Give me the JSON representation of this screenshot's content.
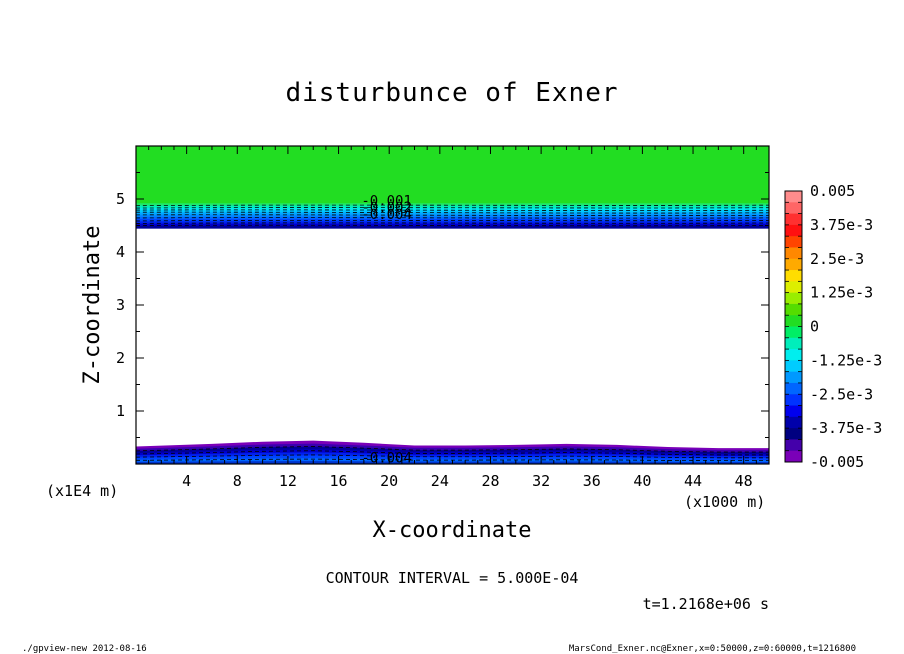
{
  "chart_data": {
    "type": "contour",
    "title": "disturbunce of Exner",
    "xlabel": "X-coordinate",
    "ylabel": "Z-coordinate",
    "x_unit_label": "(x1000 m)",
    "y_unit_label": "(x1E4 m)",
    "xlim": [
      0,
      50
    ],
    "ylim": [
      0,
      6
    ],
    "x_ticks": [
      4,
      8,
      12,
      16,
      20,
      24,
      28,
      32,
      36,
      40,
      44,
      48
    ],
    "y_ticks": [
      1,
      2,
      3,
      4,
      5
    ],
    "contour_interval_text": "CONTOUR INTERVAL = 5.000E-04",
    "time_text": "t=1.2168e+06 s",
    "footer_left": "./gpview-new  2012-08-16",
    "footer_right": "MarsCond_Exner.nc@Exner,x=0:50000,z=0:60000,t=1216800",
    "top_band_labels": [
      "-0.001",
      "-0.002",
      "-0.004"
    ],
    "bottom_band_labels": [
      "-0.004"
    ],
    "upper_region": {
      "z_bottom": 4.45,
      "z_top": 6.0,
      "fill_color": "#22dd22"
    },
    "lower_region": {
      "x": [
        0,
        6,
        10,
        14,
        18,
        22,
        26,
        30,
        34,
        38,
        42,
        46,
        50
      ],
      "z_top": [
        0.33,
        0.38,
        0.42,
        0.44,
        0.4,
        0.35,
        0.35,
        0.36,
        0.38,
        0.36,
        0.32,
        0.3,
        0.3
      ]
    },
    "colorbar": {
      "labels": [
        "0.005",
        "3.75e-3",
        "2.5e-3",
        "1.25e-3",
        "0",
        "-1.25e-3",
        "-2.5e-3",
        "-3.75e-3",
        "-0.005"
      ],
      "colors_top_to_bottom": [
        "#ff8c8c",
        "#ff6666",
        "#ff3030",
        "#ff1010",
        "#ff4400",
        "#ff8800",
        "#ffaa00",
        "#ffdd00",
        "#ddee00",
        "#99ee00",
        "#55dd00",
        "#22dd22",
        "#00ee66",
        "#00eebb",
        "#00eeee",
        "#00ccff",
        "#0099ff",
        "#0066ff",
        "#0033ff",
        "#0000ee",
        "#0000aa",
        "#000080",
        "#4400aa",
        "#7a00b8"
      ]
    }
  }
}
